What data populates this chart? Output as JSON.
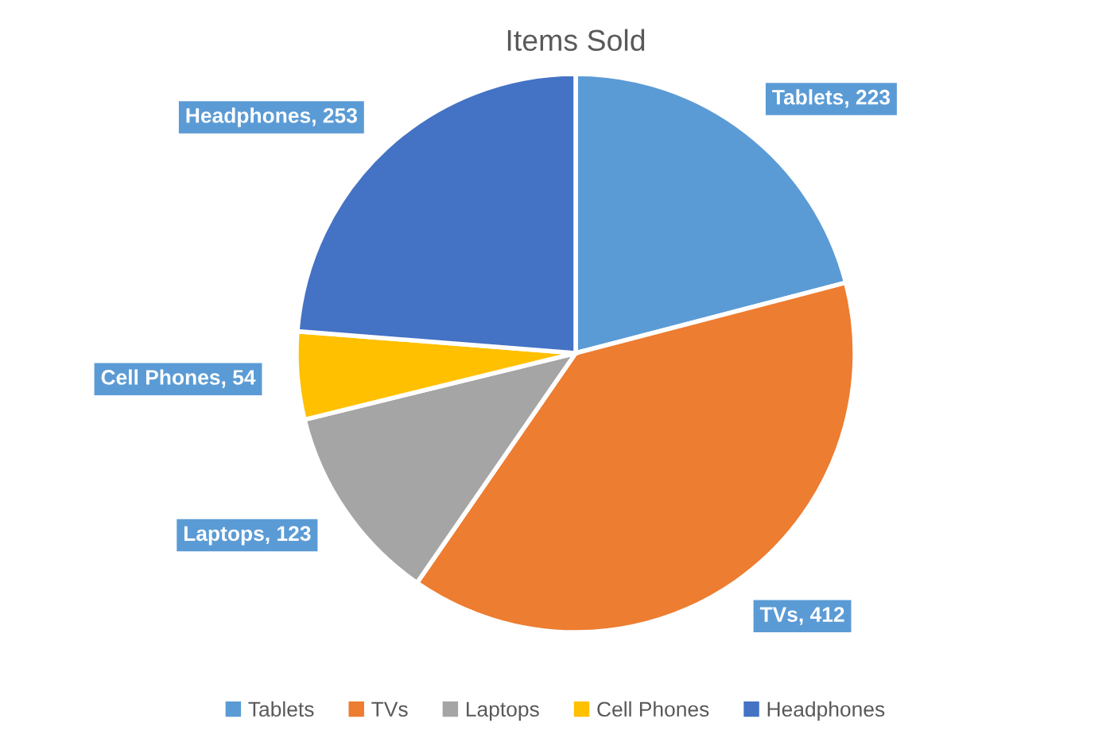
{
  "chart_data": {
    "type": "pie",
    "title": "Items Sold",
    "categories": [
      "Tablets",
      "TVs",
      "Laptops",
      "Cell Phones",
      "Headphones"
    ],
    "values": [
      223,
      412,
      123,
      54,
      253
    ],
    "colors": [
      "#5b9bd5",
      "#ed7d31",
      "#a5a5a5",
      "#ffc000",
      "#4472c4"
    ],
    "value_labels": [
      "Tablets, 223",
      "TVs, 412",
      "Laptops, 123",
      "Cell Phones, 54",
      "Headphones, 253"
    ],
    "legend": "bottom"
  }
}
